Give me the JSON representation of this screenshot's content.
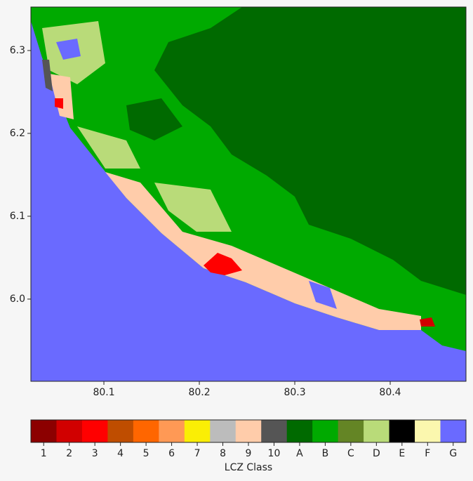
{
  "chart_data": {
    "type": "raster",
    "xlim": [
      80.0235,
      80.4794
    ],
    "ylim": [
      5.9008,
      6.3525
    ],
    "xticks": [
      80.1,
      80.2,
      80.3,
      80.4
    ],
    "yticks": [
      {
        "value": 6,
        "label": "6.0"
      },
      6.1,
      6.2,
      6.3
    ],
    "legend": {
      "title": "LCZ Class",
      "classes": [
        {
          "label": "1",
          "color": "#8c0000"
        },
        {
          "label": "2",
          "color": "#d10000"
        },
        {
          "label": "3",
          "color": "#ff0000"
        },
        {
          "label": "4",
          "color": "#bf4d00"
        },
        {
          "label": "5",
          "color": "#ff6600"
        },
        {
          "label": "6",
          "color": "#ff9955"
        },
        {
          "label": "7",
          "color": "#faee05"
        },
        {
          "label": "8",
          "color": "#bcbcbc"
        },
        {
          "label": "9",
          "color": "#ffccaa"
        },
        {
          "label": "10",
          "color": "#555555"
        },
        {
          "label": "A",
          "color": "#006a00"
        },
        {
          "label": "B",
          "color": "#00aa00"
        },
        {
          "label": "C",
          "color": "#648525"
        },
        {
          "label": "D",
          "color": "#b9db79"
        },
        {
          "label": "E",
          "color": "#000000"
        },
        {
          "label": "F",
          "color": "#fbf7ae"
        },
        {
          "label": "G",
          "color": "#6a6aff"
        }
      ]
    }
  }
}
